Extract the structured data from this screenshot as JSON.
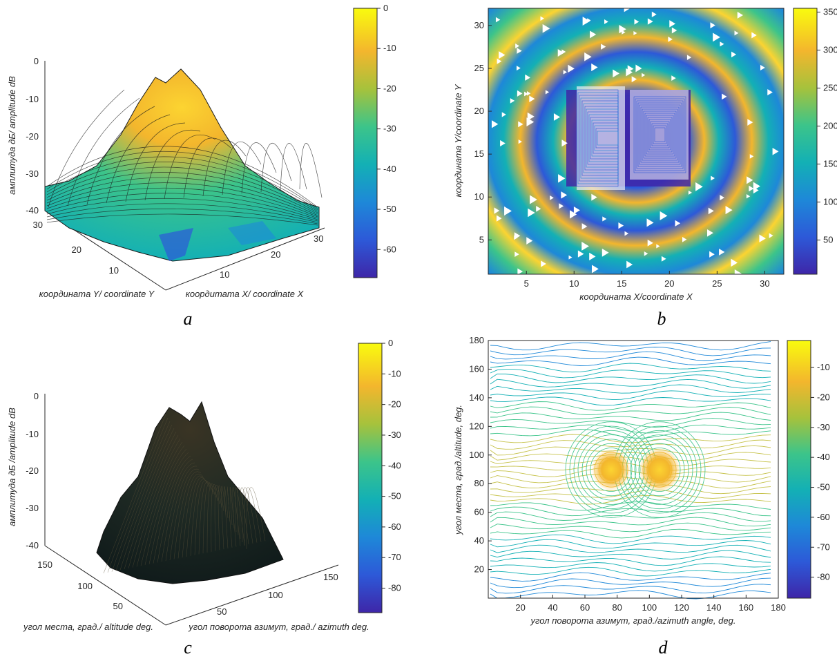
{
  "colors": {
    "colormap": [
      "#3e26a8",
      "#2d59d8",
      "#1e88d8",
      "#13b0b5",
      "#3cc48a",
      "#a6c23c",
      "#f3b62d",
      "#fcd431",
      "#f9fb0e"
    ],
    "mesh_line": "#1a1a1a",
    "axis": "#262626"
  },
  "chart_data": [
    {
      "id": "a",
      "type": "surface",
      "panel_label": "a",
      "xlabel": "кoopдuтата X/ coordinate X",
      "ylabel": "кoopдuнaтa Y/ coordinate Y",
      "zlabel": "амплитуда дБ/ amplitude dB",
      "xticks": [
        "10",
        "20",
        "30"
      ],
      "yticks": [
        "10",
        "20",
        "30"
      ],
      "zticks": [
        "0",
        "-10",
        "-20",
        "-30",
        "-40"
      ],
      "xlim": [
        1,
        32
      ],
      "ylim": [
        1,
        32
      ],
      "zlim": [
        -40,
        0
      ],
      "colorbar": {
        "ticks": [
          "0",
          "-10",
          "-20",
          "-30",
          "-40",
          "-50",
          "-60"
        ],
        "range": [
          -67,
          0
        ]
      }
    },
    {
      "id": "b",
      "type": "contour",
      "panel_label": "b",
      "xlabel": "кoopдuнaтa X/coordinate X",
      "ylabel": "кoopдuнaтa Y/coordinate Y",
      "xticks": [
        "5",
        "10",
        "15",
        "20",
        "25",
        "30"
      ],
      "yticks": [
        "5",
        "10",
        "15",
        "20",
        "25",
        "30"
      ],
      "xlim": [
        1,
        32
      ],
      "ylim": [
        1,
        32
      ],
      "colorbar": {
        "ticks": [
          "350",
          "300",
          "250",
          "200",
          "150",
          "100",
          "50"
        ],
        "range": [
          5,
          355
        ]
      }
    },
    {
      "id": "c",
      "type": "surface",
      "panel_label": "c",
      "xlabel": "угол поворота азимут, град./ azimuth deg.",
      "ylabel": "угол места, град./ altitude deg.",
      "zlabel": "амплитуда дБ /amplitude dB",
      "xticks": [
        "50",
        "100",
        "150"
      ],
      "yticks": [
        "50",
        "100",
        "150"
      ],
      "zticks": [
        "0",
        "-10",
        "-20",
        "-30",
        "-40"
      ],
      "xlim": [
        0,
        180
      ],
      "ylim": [
        0,
        180
      ],
      "zlim": [
        -40,
        0
      ],
      "colorbar": {
        "ticks": [
          "0",
          "-10",
          "-20",
          "-30",
          "-40",
          "-50",
          "-60",
          "-70",
          "-80"
        ],
        "range": [
          -88,
          0
        ]
      }
    },
    {
      "id": "d",
      "type": "contour",
      "panel_label": "d",
      "xlabel": "угол поворота азимут, град./azimuth angle, deg.",
      "ylabel": "угол места, град./altitude, deg.",
      "xticks": [
        "20",
        "40",
        "60",
        "80",
        "100",
        "120",
        "140",
        "160",
        "180"
      ],
      "yticks": [
        "20",
        "40",
        "60",
        "80",
        "100",
        "120",
        "140",
        "160",
        "180"
      ],
      "xlim": [
        0,
        180
      ],
      "ylim": [
        0,
        180
      ],
      "colorbar": {
        "ticks": [
          "-10",
          "-20",
          "-30",
          "-40",
          "-50",
          "-60",
          "-70",
          "-80"
        ],
        "range": [
          -87,
          -1
        ]
      }
    }
  ]
}
